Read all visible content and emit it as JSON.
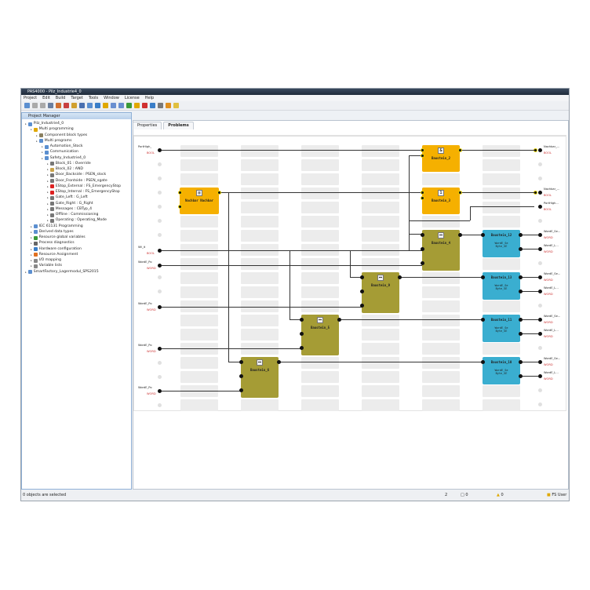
{
  "window": {
    "title": "PAS4000 - Pilz_Industrie4_0"
  },
  "menu": [
    "Project",
    "Edit",
    "Build",
    "Target",
    "Tools",
    "Window",
    "License",
    "Help"
  ],
  "project_manager": {
    "title": "Project Manager",
    "tree": [
      {
        "label": "Pilz_Industrie4_0",
        "level": 0,
        "color": "#5b8fd0"
      },
      {
        "label": "Multi programming",
        "level": 1,
        "color": "#e0a800"
      },
      {
        "label": "Component block types",
        "level": 2,
        "color": "#8a7f60"
      },
      {
        "label": "Multi programs",
        "level": 2,
        "color": "#5b8fd0"
      },
      {
        "label": "Automation_Stock",
        "level": 3,
        "color": "#5b8fd0"
      },
      {
        "label": "Communication",
        "level": 3,
        "color": "#5b8fd0"
      },
      {
        "label": "Safety_Industrie4_0",
        "level": 3,
        "color": "#5b8fd0"
      },
      {
        "label": "Block_01 : Override",
        "level": 4,
        "color": "#777"
      },
      {
        "label": "Block_02 : AND",
        "level": 4,
        "color": "#c9a24a"
      },
      {
        "label": "Door_Backside : PSEN_slock",
        "level": 4,
        "color": "#777"
      },
      {
        "label": "Door_Frontside : PSEN_sgate",
        "level": 4,
        "color": "#777"
      },
      {
        "label": "EStop_External : FS_EmergencyStop",
        "level": 4,
        "color": "#d22"
      },
      {
        "label": "EStop_Internal : FS_EmergencyStop",
        "level": 4,
        "color": "#d22"
      },
      {
        "label": "Gate_Left : G_Left",
        "level": 4,
        "color": "#777"
      },
      {
        "label": "Gate_Right : G_Right",
        "level": 4,
        "color": "#777"
      },
      {
        "label": "Messages : CBTyp_4",
        "level": 4,
        "color": "#777"
      },
      {
        "label": "Offline : Commissioning",
        "level": 4,
        "color": "#777"
      },
      {
        "label": "Operating : Operating_Mode",
        "level": 4,
        "color": "#777"
      },
      {
        "label": "IEC 61131 Programming",
        "level": 1,
        "color": "#5b8fd0"
      },
      {
        "label": "Derived data types",
        "level": 1,
        "color": "#5b8fd0"
      },
      {
        "label": "Resource global variables",
        "level": 1,
        "color": "#3a9a3a"
      },
      {
        "label": "Process diagnostics",
        "level": 1,
        "color": "#666"
      },
      {
        "label": "Hardware configuration",
        "level": 1,
        "color": "#3a7ec8"
      },
      {
        "label": "Resource Assignment",
        "level": 1,
        "color": "#e07020"
      },
      {
        "label": "I/O mapping",
        "level": 1,
        "color": "#888"
      },
      {
        "label": "Variable lists",
        "level": 1,
        "color": "#888"
      },
      {
        "label": "SmartFactory_Lagermodul_SPS2015",
        "level": 0,
        "color": "#5b8fd0"
      }
    ]
  },
  "tabs": {
    "properties": "Properties",
    "problems": "Problems"
  },
  "diagram": {
    "inputs": [
      {
        "name": "PortHigh_",
        "type": "BOOL"
      },
      {
        "name": "Wt_it",
        "type": "BOOL"
      },
      {
        "name": "WordE_Po",
        "type": "WORD"
      },
      {
        "name": "WordE_Po",
        "type": "WORD"
      },
      {
        "name": "WordE_Po",
        "type": "WORD"
      },
      {
        "name": "WordE_Po",
        "type": "WORD"
      }
    ],
    "outputs": [
      {
        "name": "Nachbar_...",
        "type": "BOOL"
      },
      {
        "name": "Nachbar_...",
        "type": "BOOL"
      },
      {
        "name": "PortHigh...",
        "type": "BOOL"
      },
      {
        "name": "WordE_Se...",
        "type": "WORD"
      },
      {
        "name": "WordE_L...",
        "type": "WORD"
      },
      {
        "name": "WordE_Se...",
        "type": "WORD"
      },
      {
        "name": "WordE_L...",
        "type": "WORD"
      },
      {
        "name": "WordE_Se...",
        "type": "WORD"
      },
      {
        "name": "WordE_L...",
        "type": "WORD"
      },
      {
        "name": "WordE_Se...",
        "type": "WORD"
      },
      {
        "name": "WordE_L...",
        "type": "WORD"
      }
    ],
    "blocks": [
      {
        "name": "Nachbar Nachbar",
        "kind": "safety",
        "color": "#f5b000",
        "icon": "▥"
      },
      {
        "name": "Baustein_2",
        "kind": "and",
        "color": "#f5b000",
        "icon": "&"
      },
      {
        "name": "Baustein_3",
        "kind": "or",
        "color": "#f5b000",
        "icon": "1"
      },
      {
        "name": "Baustein_4",
        "kind": "func",
        "color": "#a59c35",
        "icon": "⎓"
      },
      {
        "name": "Baustein_9",
        "kind": "func",
        "color": "#a59c35",
        "icon": "⎓"
      },
      {
        "name": "Baustein_5",
        "kind": "func",
        "color": "#a59c35",
        "icon": "⎓"
      },
      {
        "name": "Baustein_6",
        "kind": "func",
        "color": "#a59c35",
        "icon": "⎓"
      },
      {
        "name": "Baustein_12",
        "kind": "split",
        "color": "#3aaed0",
        "sub": "WordE_Se\nByte_SE"
      },
      {
        "name": "Baustein_13",
        "kind": "split",
        "color": "#3aaed0",
        "sub": "WordE_Se\nByte_SE"
      },
      {
        "name": "Baustein_11",
        "kind": "split",
        "color": "#3aaed0",
        "sub": "WordE_Se\nByte_SE"
      },
      {
        "name": "Baustein_10",
        "kind": "split",
        "color": "#3aaed0",
        "sub": "WordE_Se\nByte_SE"
      }
    ]
  },
  "status": {
    "selection": "0 objects are selected",
    "count": "2",
    "errors": "0",
    "warnings": "0",
    "user": "FS User"
  }
}
